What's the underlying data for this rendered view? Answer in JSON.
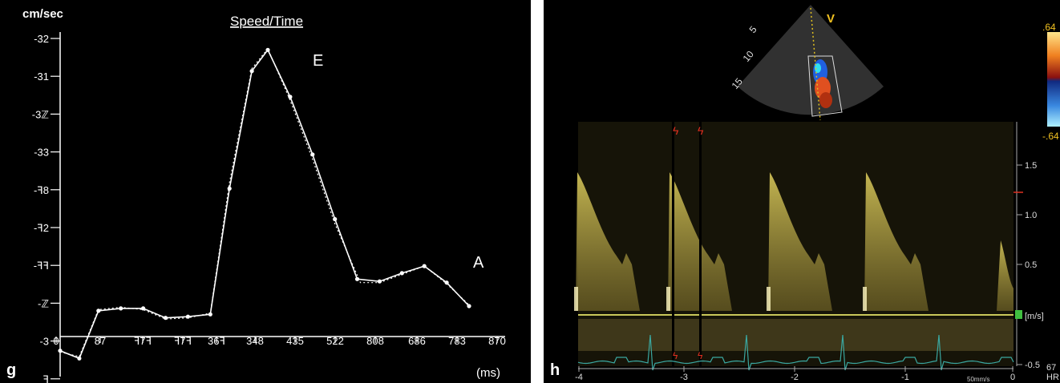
{
  "left_panel": {
    "panel_label": "g",
    "chart_data": {
      "type": "line",
      "title": "Speed/Time",
      "ylabel": "cm/sec",
      "xlabel": "(ms)",
      "ytick_labels": [
        "-32",
        "-31",
        "-3ℤ",
        "-33",
        "-ꟻ8",
        "-ꟻ2",
        "-ꟻꟻ",
        "-ℤ",
        "-3",
        "ꟻ"
      ],
      "xtick_labels": [
        "0",
        "87",
        "ꟻ7ꟻ",
        "ꟻ7ꟻ",
        "36ꟻ",
        "348",
        "435",
        "522",
        "808",
        "686",
        "783",
        "870"
      ],
      "annotations": [
        "E",
        "A"
      ],
      "series": [
        {
          "style": "solid",
          "points": [
            [
              0,
              -0.3
            ],
            [
              30,
              -0.95
            ],
            [
              60,
              3.1
            ],
            [
              95,
              3.3
            ],
            [
              130,
              3.3
            ],
            [
              165,
              2.5
            ],
            [
              200,
              2.6
            ],
            [
              235,
              2.8
            ],
            [
              265,
              13.5
            ],
            [
              300,
              23.5
            ],
            [
              325,
              25.3
            ],
            [
              360,
              21.3
            ],
            [
              395,
              16.4
            ],
            [
              430,
              10.9
            ],
            [
              465,
              5.8
            ],
            [
              500,
              5.6
            ],
            [
              535,
              6.3
            ],
            [
              570,
              6.9
            ],
            [
              605,
              5.5
            ],
            [
              640,
              3.5
            ]
          ]
        },
        {
          "style": "dotted",
          "points": [
            [
              0,
              -0.4
            ],
            [
              30,
              -0.8
            ],
            [
              60,
              3.2
            ],
            [
              95,
              3.4
            ],
            [
              130,
              3.2
            ],
            [
              165,
              2.4
            ],
            [
              200,
              2.5
            ],
            [
              235,
              2.9
            ],
            [
              265,
              14.0
            ],
            [
              300,
              23.7
            ],
            [
              325,
              25.4
            ],
            [
              360,
              21.0
            ],
            [
              395,
              16.0
            ],
            [
              430,
              10.5
            ],
            [
              470,
              5.5
            ],
            [
              500,
              5.5
            ],
            [
              535,
              6.2
            ],
            [
              570,
              6.9
            ],
            [
              605,
              5.4
            ],
            [
              640,
              3.6
            ]
          ]
        }
      ],
      "point_labels": [
        "E",
        "A"
      ],
      "colors": {
        "background": "#000000",
        "line": "#ffffff",
        "text": "#ffffff"
      }
    }
  },
  "right_panel": {
    "panel_label": "h",
    "depth_labels": [
      "5",
      "10",
      "15"
    ],
    "probe_marker": "V",
    "colorbar_labels": [
      ".64",
      "-.64"
    ],
    "velocity_scale_labels": [
      "1.5",
      "1.0",
      "0.5",
      "-0.5"
    ],
    "velocity_unit": "[m/s]",
    "time_axis_labels": [
      "-4",
      "-3",
      "-2",
      "-1",
      "0"
    ],
    "sweep_speed": "50mm/s",
    "hr_label": "HR",
    "hr_value": "67",
    "colors": {
      "background": "#000000",
      "doppler": "#d8c85a",
      "ecg": "#3aa7a0",
      "baseline": "#c9c85a",
      "marker": "#e03020"
    }
  }
}
